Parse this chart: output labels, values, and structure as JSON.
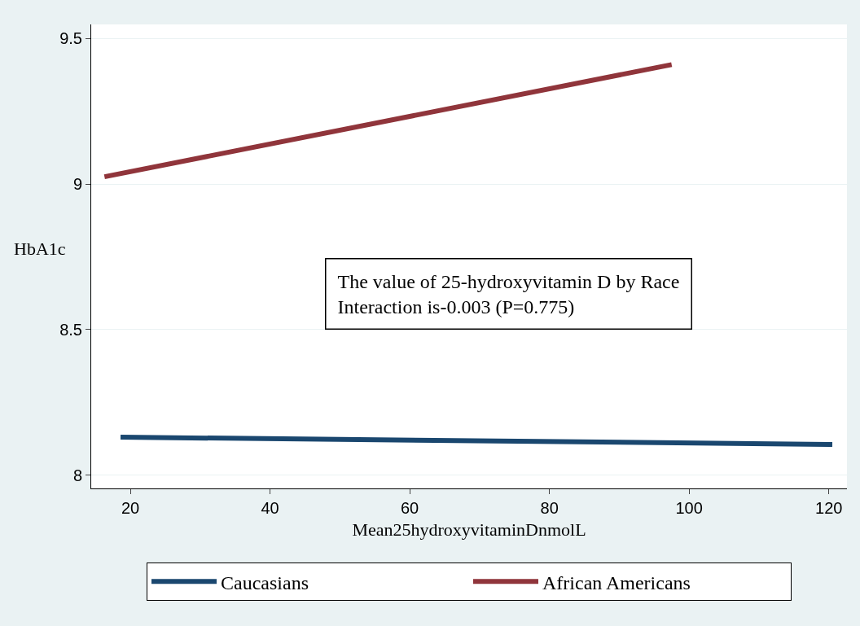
{
  "chart_data": {
    "type": "line",
    "xlabel": "Mean25hydroxyvitaminDnmolL",
    "ylabel": "HbA1c",
    "xlim": [
      14.4,
      122.6
    ],
    "xticks": [
      20,
      40,
      60,
      80,
      100,
      120
    ],
    "ylim": [
      7.955,
      9.548
    ],
    "yticks": [
      8,
      8.5,
      9,
      9.5
    ],
    "series": [
      {
        "name": "Caucasians",
        "color": "#1a476f",
        "x": [
          18.6,
          120.5
        ],
        "values": [
          8.131,
          8.106
        ]
      },
      {
        "name": "African Americans",
        "color": "#90353b",
        "x": [
          16.3,
          97.5
        ],
        "values": [
          9.025,
          9.41
        ]
      }
    ],
    "annotations": [
      "The value of 25-hydroxyvitamin D by Race\nInteraction is-0.003 (P=0.775)"
    ],
    "grid": "y",
    "legend": "bottom",
    "marker": "none",
    "line_style": "solid"
  }
}
